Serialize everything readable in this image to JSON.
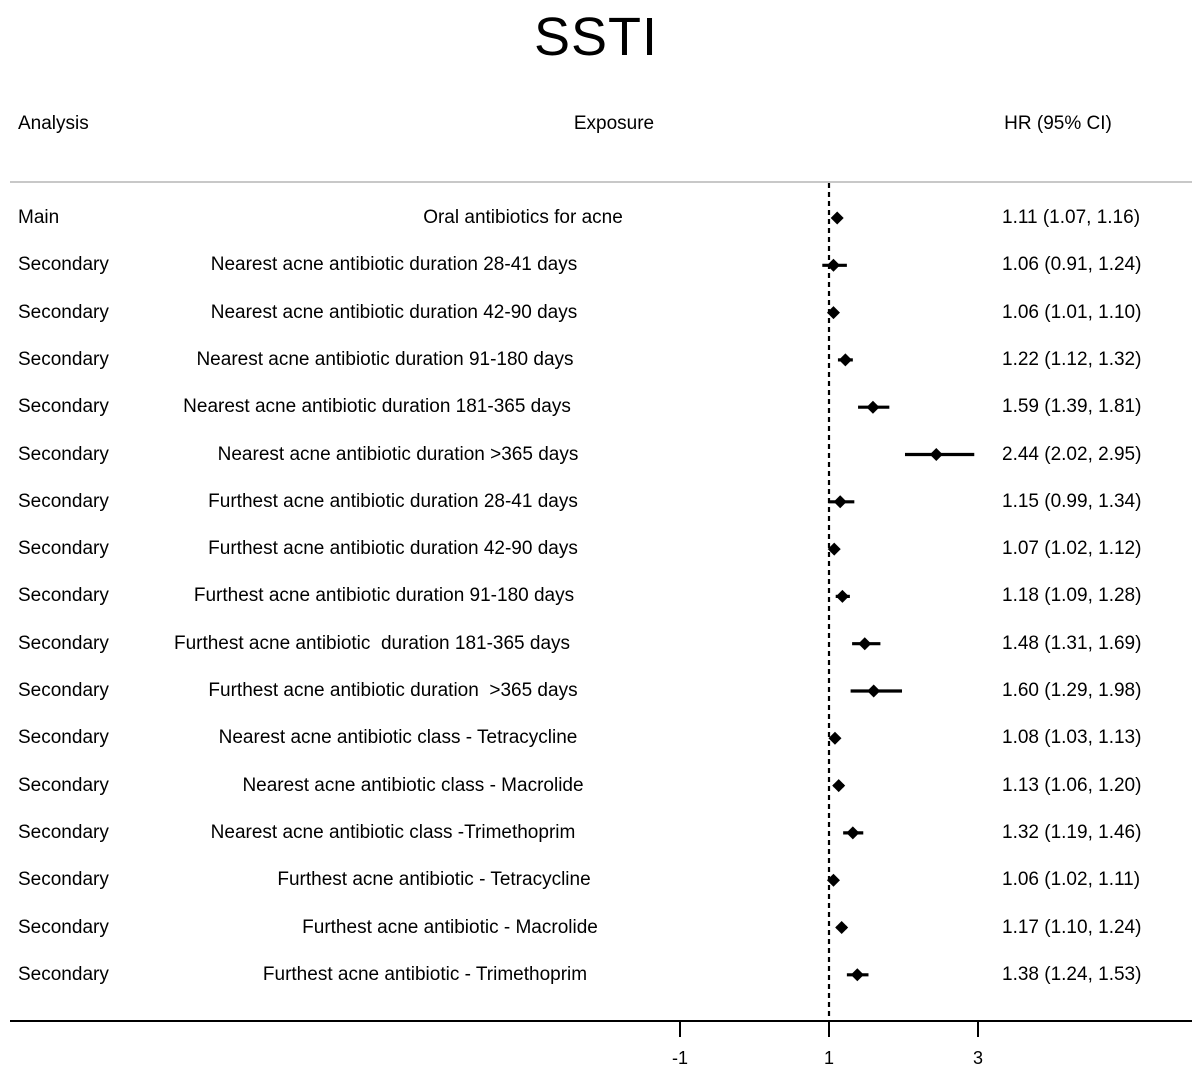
{
  "title": "SSTI",
  "headers": {
    "analysis": "Analysis",
    "exposure": "Exposure",
    "hr": "HR (95% CI)"
  },
  "chart_data": {
    "type": "forest",
    "title": "SSTI",
    "reference_line": 1,
    "x_ticks": [
      -1,
      1,
      3
    ],
    "xlim": [
      -2.5,
      4.6
    ],
    "rows": [
      {
        "analysis": "Main",
        "exposure": "Oral antibiotics for acne",
        "hr": 1.11,
        "lo": 1.07,
        "hi": 1.16,
        "label": "1.11 (1.07, 1.16)"
      },
      {
        "analysis": "Secondary",
        "exposure": "Nearest acne antibiotic duration 28-41 days",
        "hr": 1.06,
        "lo": 0.91,
        "hi": 1.24,
        "label": "1.06 (0.91, 1.24)"
      },
      {
        "analysis": "Secondary",
        "exposure": "Nearest acne antibiotic duration 42-90 days",
        "hr": 1.06,
        "lo": 1.01,
        "hi": 1.1,
        "label": "1.06 (1.01, 1.10)"
      },
      {
        "analysis": "Secondary",
        "exposure": "Nearest acne antibiotic duration 91-180 days",
        "hr": 1.22,
        "lo": 1.12,
        "hi": 1.32,
        "label": "1.22 (1.12, 1.32)"
      },
      {
        "analysis": "Secondary",
        "exposure": "Nearest acne antibiotic duration 181-365 days",
        "hr": 1.59,
        "lo": 1.39,
        "hi": 1.81,
        "label": "1.59 (1.39, 1.81)"
      },
      {
        "analysis": "Secondary",
        "exposure": "Nearest acne antibiotic duration >365 days",
        "hr": 2.44,
        "lo": 2.02,
        "hi": 2.95,
        "label": "2.44 (2.02, 2.95)"
      },
      {
        "analysis": "Secondary",
        "exposure": "Furthest acne antibiotic duration 28-41 days",
        "hr": 1.15,
        "lo": 0.99,
        "hi": 1.34,
        "label": "1.15 (0.99, 1.34)"
      },
      {
        "analysis": "Secondary",
        "exposure": "Furthest acne antibiotic duration 42-90 days",
        "hr": 1.07,
        "lo": 1.02,
        "hi": 1.12,
        "label": "1.07 (1.02, 1.12)"
      },
      {
        "analysis": "Secondary",
        "exposure": "Furthest acne antibiotic duration 91-180 days",
        "hr": 1.18,
        "lo": 1.09,
        "hi": 1.28,
        "label": "1.18 (1.09, 1.28)"
      },
      {
        "analysis": "Secondary",
        "exposure": "Furthest acne antibiotic  duration 181-365 days",
        "hr": 1.48,
        "lo": 1.31,
        "hi": 1.69,
        "label": "1.48 (1.31, 1.69)"
      },
      {
        "analysis": "Secondary",
        "exposure": "Furthest acne antibiotic duration  >365 days",
        "hr": 1.6,
        "lo": 1.29,
        "hi": 1.98,
        "label": "1.60 (1.29, 1.98)"
      },
      {
        "analysis": "Secondary",
        "exposure": "Nearest acne antibiotic class - Tetracycline",
        "hr": 1.08,
        "lo": 1.03,
        "hi": 1.13,
        "label": "1.08 (1.03, 1.13)"
      },
      {
        "analysis": "Secondary",
        "exposure": "Nearest acne antibiotic class - Macrolide",
        "hr": 1.13,
        "lo": 1.06,
        "hi": 1.2,
        "label": "1.13 (1.06, 1.20)"
      },
      {
        "analysis": "Secondary",
        "exposure": "Nearest acne antibiotic class -Trimethoprim",
        "hr": 1.32,
        "lo": 1.19,
        "hi": 1.46,
        "label": "1.32 (1.19, 1.46)"
      },
      {
        "analysis": "Secondary",
        "exposure": "Furthest acne antibiotic - Tetracycline",
        "hr": 1.06,
        "lo": 1.02,
        "hi": 1.11,
        "label": "1.06 (1.02, 1.11)"
      },
      {
        "analysis": "Secondary",
        "exposure": "Furthest acne antibiotic - Macrolide",
        "hr": 1.17,
        "lo": 1.1,
        "hi": 1.24,
        "label": "1.17 (1.10, 1.24)"
      },
      {
        "analysis": "Secondary",
        "exposure": "Furthest acne antibiotic - Trimethoprim",
        "hr": 1.38,
        "lo": 1.24,
        "hi": 1.53,
        "label": "1.38 (1.24, 1.53)"
      }
    ]
  }
}
